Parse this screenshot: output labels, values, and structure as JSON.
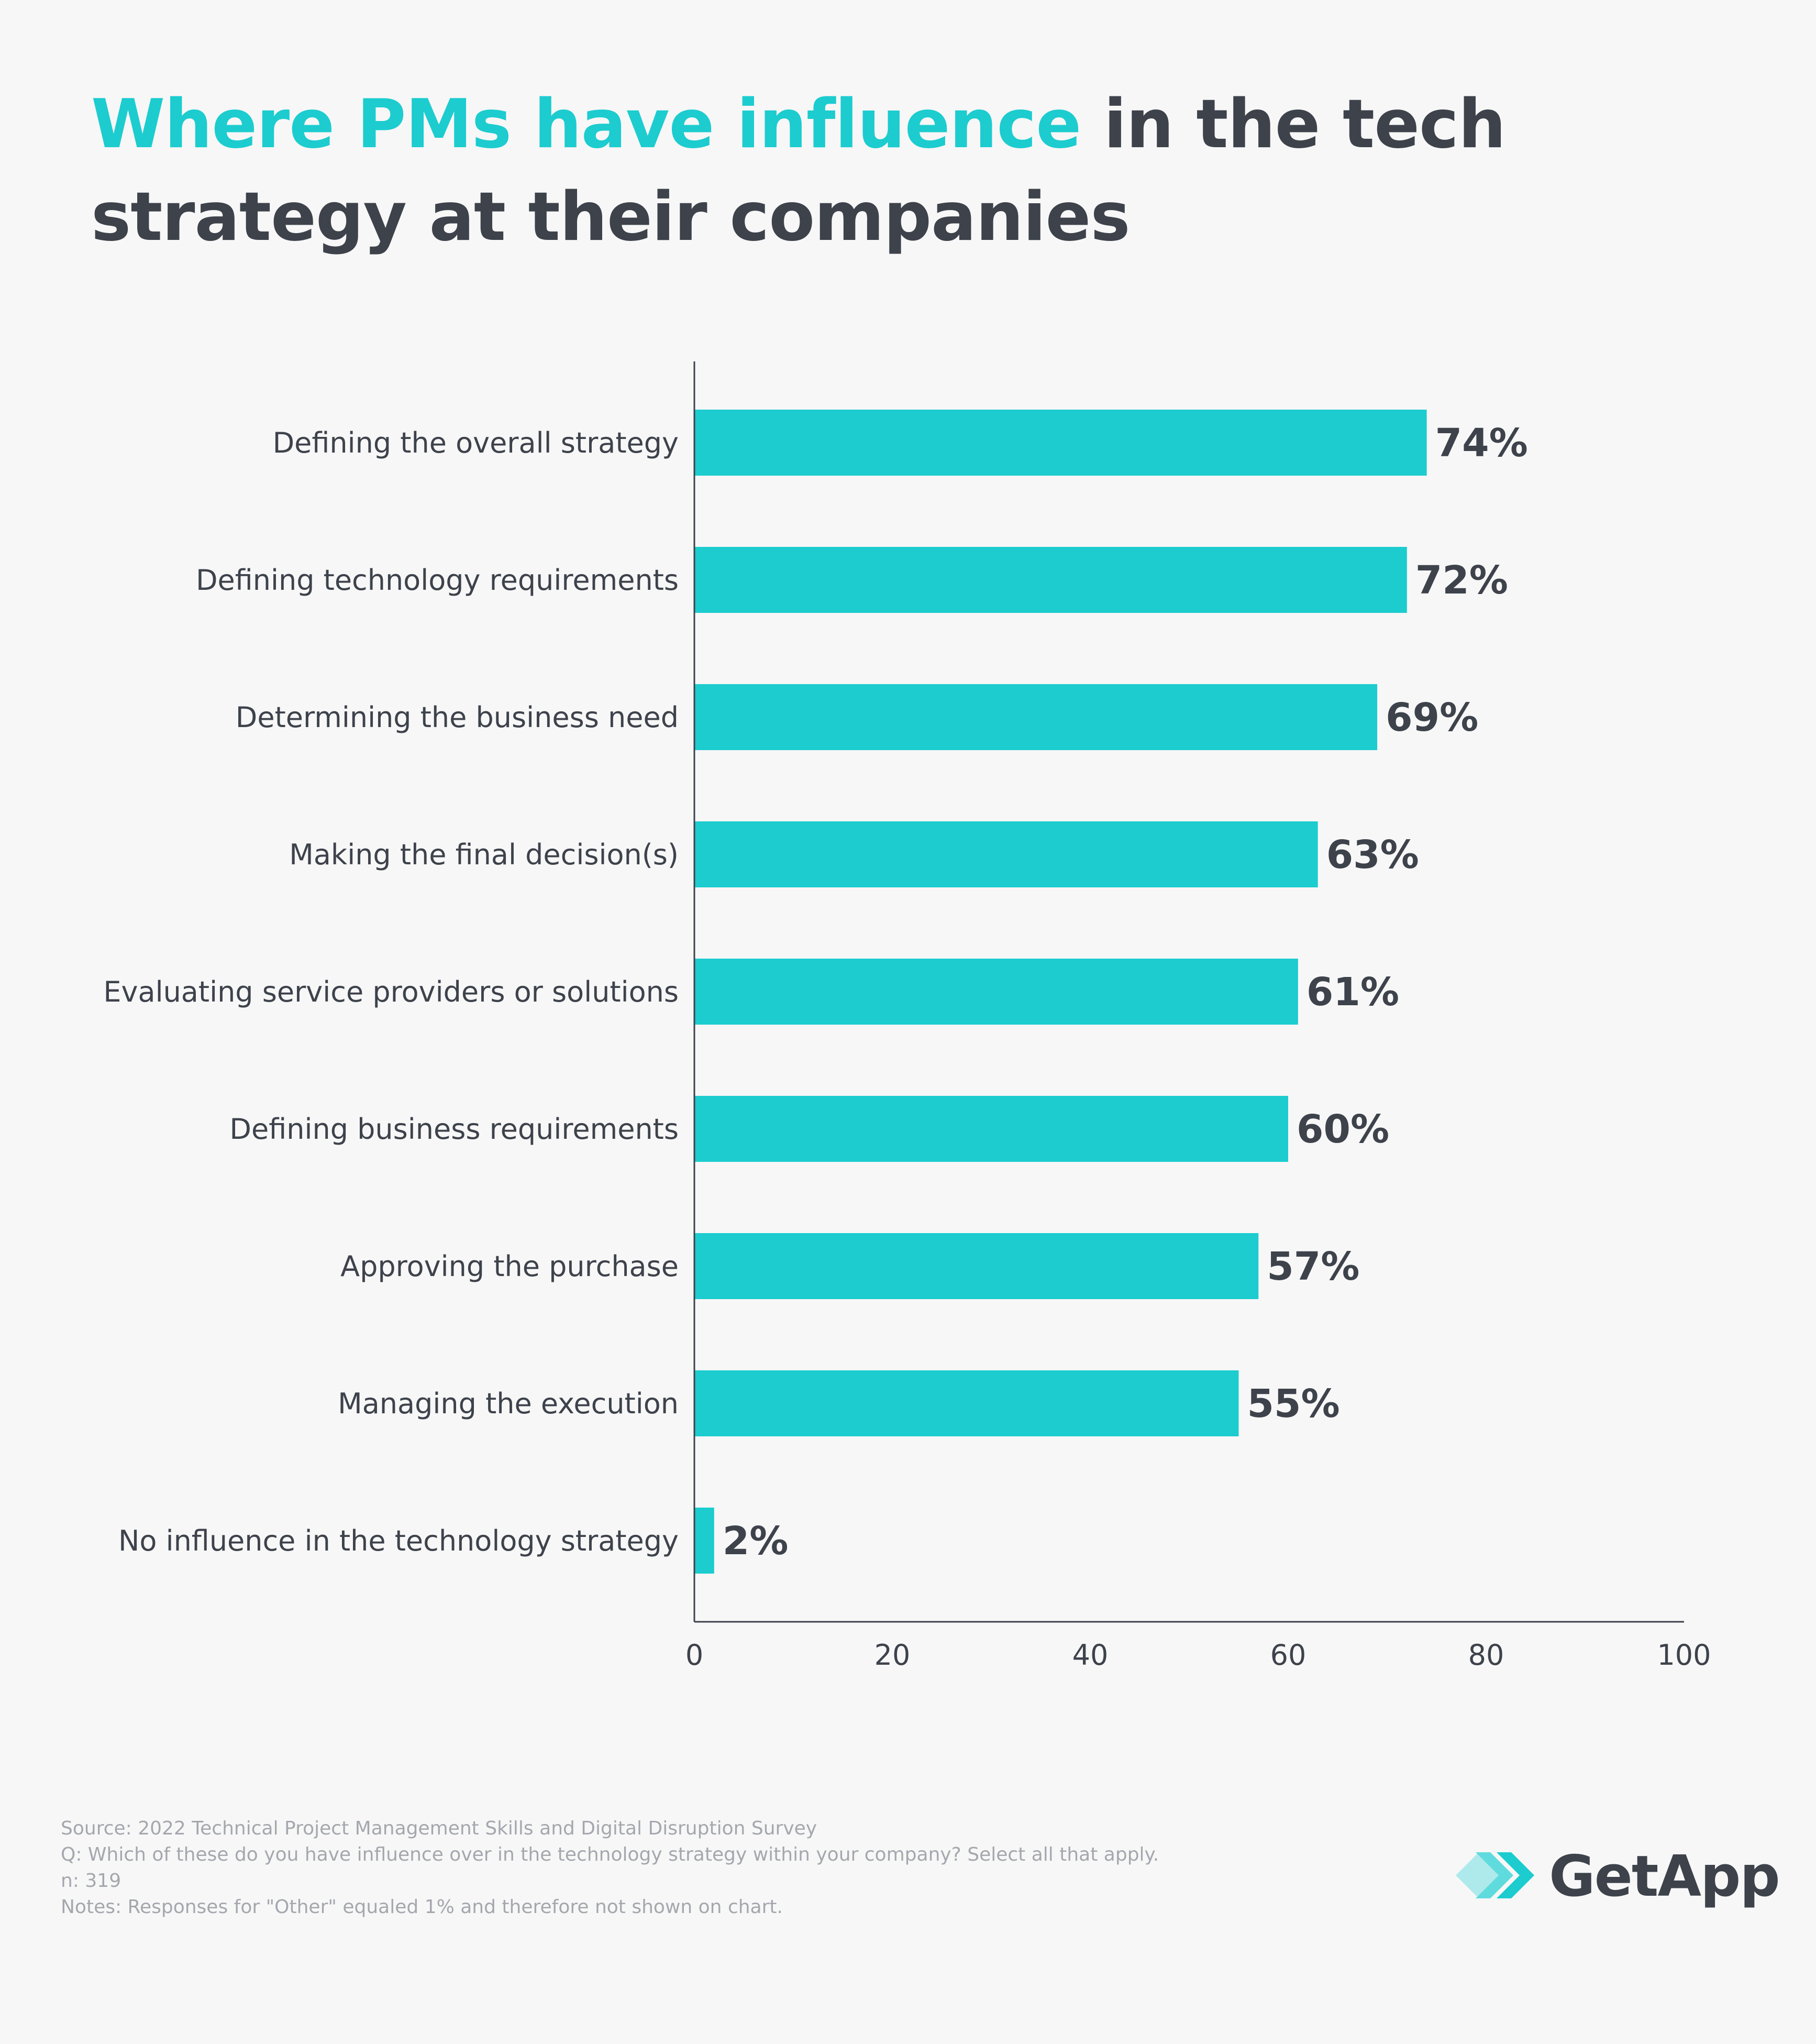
{
  "title": {
    "highlight": "Where PMs have influence",
    "rest": " in the tech strategy at their companies"
  },
  "colors": {
    "bar": "#1ccccf",
    "text": "#3d424b",
    "notes": "#a4a7ad",
    "background": "#f7f7f7"
  },
  "chart_data": {
    "type": "bar",
    "orientation": "horizontal",
    "categories": [
      "Defining the overall strategy",
      "Defining technology requirements",
      "Determining the business need",
      "Making the final decision(s)",
      "Evaluating service providers or solutions",
      "Defining business requirements",
      "Approving the purchase",
      "Managing the execution",
      "No influence in the technology strategy"
    ],
    "values": [
      74,
      72,
      69,
      63,
      61,
      60,
      57,
      55,
      2
    ],
    "value_labels": [
      "74%",
      "72%",
      "69%",
      "63%",
      "61%",
      "60%",
      "57%",
      "55%",
      "2%"
    ],
    "xlim": [
      0,
      100
    ],
    "xticks": [
      "0",
      "20",
      "40",
      "60",
      "80",
      "100"
    ],
    "xlabel": "",
    "ylabel": "",
    "grid": false
  },
  "notes": {
    "source": "Source: 2022 Technical Project Management Skills and Digital Disruption Survey",
    "question": "Q: Which of these do you have influence over in the technology strategy within your company? Select all that apply.",
    "n": "n: 319",
    "notes": "Notes: Responses for \"Other\" equaled 1% and therefore not shown on chart."
  },
  "logo": {
    "text": "GetApp",
    "icon": "getapp-chevrons-icon"
  }
}
